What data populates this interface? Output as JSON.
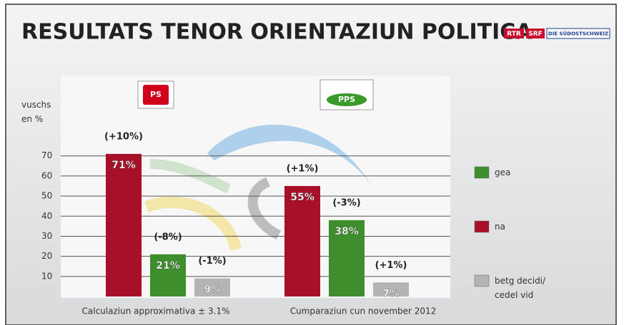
{
  "chart_data": {
    "type": "bar",
    "title": "RESULTATS TENOR ORIENTAZIUN POLITICA",
    "header_logos": [
      "RTR",
      "SRF",
      "DIE SÜDOSTSCHWEIZ"
    ],
    "y_label": "vuschs en %",
    "categories": [
      "PS",
      "PPS"
    ],
    "series": [
      {
        "name": "gea",
        "color": "#3e8e2e",
        "values": [
          21,
          38
        ],
        "value_labels": [
          "21%",
          "38%"
        ],
        "change_labels": [
          "(-8%)",
          "(-3%)"
        ]
      },
      {
        "name": "na",
        "color": "#a8102a",
        "values": [
          71,
          55
        ],
        "value_labels": [
          "71%",
          "55%"
        ],
        "change_labels": [
          "(+10%)",
          "(+1%)"
        ]
      },
      {
        "name": "betg decidi/ cedel vid",
        "color": "#b4b4b4",
        "values": [
          9,
          7
        ],
        "value_labels": [
          "9%",
          "7%"
        ],
        "change_labels": [
          "(-1%)",
          "(+1%)"
        ]
      }
    ],
    "ylim": [
      0,
      110
    ],
    "yticks": [
      10,
      20,
      30,
      40,
      50,
      60,
      70
    ],
    "grid": true,
    "footnotes": [
      "Calculaziun approximativa ± 3.1%",
      "Cumparaziun cun november 2012"
    ]
  }
}
